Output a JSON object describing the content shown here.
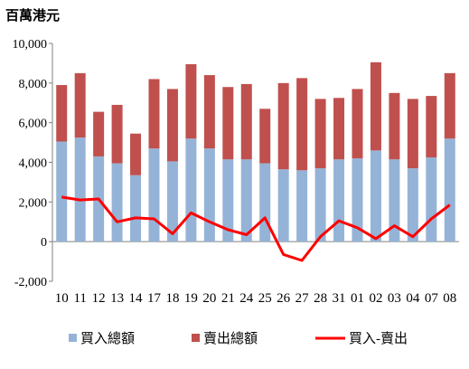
{
  "chart_data": {
    "type": "bar",
    "unit_label": "百萬港元",
    "categories": [
      "10",
      "11",
      "12",
      "13",
      "14",
      "17",
      "18",
      "19",
      "20",
      "21",
      "24",
      "25",
      "26",
      "27",
      "28",
      "31",
      "01",
      "02",
      "03",
      "04",
      "07",
      "08"
    ],
    "ylim": [
      -2000,
      10000
    ],
    "yticks": [
      "-2,000",
      "0",
      "2,000",
      "4,000",
      "6,000",
      "8,000",
      "10,000"
    ],
    "ytick_values": [
      -2000,
      0,
      2000,
      4000,
      6000,
      8000,
      10000
    ],
    "grid": false,
    "legend_position": "bottom",
    "stacked": true,
    "series": [
      {
        "name": "買入總額",
        "kind": "bar",
        "color": "#95B3D7",
        "values": [
          5050,
          5250,
          4300,
          3950,
          3350,
          4700,
          4050,
          5200,
          4700,
          4150,
          4150,
          3950,
          3650,
          3600,
          3700,
          4150,
          4200,
          4600,
          4150,
          3700,
          4250,
          5200
        ]
      },
      {
        "name": "賣出總額",
        "kind": "bar",
        "color": "#C0504D",
        "values": [
          2850,
          3250,
          2250,
          2950,
          2100,
          3500,
          3650,
          3750,
          3700,
          3650,
          3800,
          2750,
          4350,
          4650,
          3500,
          3100,
          3500,
          4450,
          3350,
          3500,
          3100,
          3300
        ]
      },
      {
        "name": "買入-賣出",
        "kind": "line",
        "color": "#FF0000",
        "values": [
          2250,
          2100,
          2150,
          1000,
          1200,
          1150,
          400,
          1450,
          1000,
          600,
          350,
          1200,
          -650,
          -950,
          250,
          1050,
          700,
          150,
          800,
          250,
          1150,
          1850
        ]
      }
    ]
  }
}
